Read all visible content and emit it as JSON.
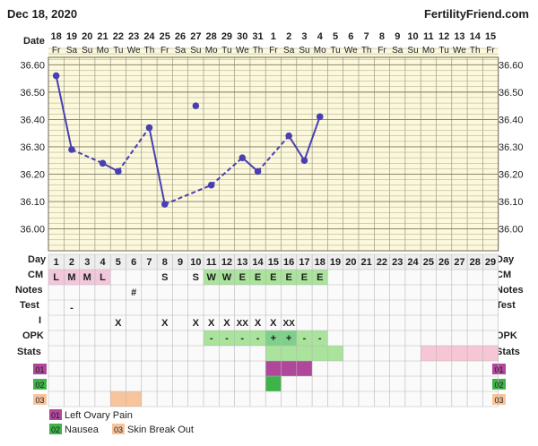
{
  "header": {
    "date": "Dec 18, 2020",
    "site": "FertilityFriend.com"
  },
  "rows": {
    "date": "Date",
    "day": "Day",
    "cm": "CM",
    "notes": "Notes",
    "test": "Test",
    "intercourse": "I",
    "opk": "OPK",
    "stats": "Stats",
    "custom1": "01",
    "custom2": "02",
    "custom3": "03"
  },
  "legend": [
    {
      "code": "01",
      "label": "Left Ovary Pain",
      "color": "#b0479a"
    },
    {
      "code": "02",
      "label": "Nausea",
      "color": "#3fb24a"
    },
    {
      "code": "03",
      "label": "Skin Break Out",
      "color": "#f7c49b"
    }
  ],
  "colors": {
    "grid_background": "#fbf8dc",
    "line": "#4a3fb0",
    "cm_pink": "#f2c7dc",
    "cm_green": "#a9e39c",
    "stats_green": "#a9e39c",
    "stats_pink": "#f6c6d4",
    "symptom_magenta": "#b0479a",
    "symptom_green": "#3fb24a",
    "symptom_peach": "#f7c49b"
  },
  "chart_data": {
    "type": "line",
    "y_ticks": [
      "36.60",
      "36.50",
      "36.40",
      "36.30",
      "36.20",
      "36.10",
      "36.00"
    ],
    "ylim": [
      35.92,
      36.66
    ],
    "dates": [
      "18",
      "19",
      "20",
      "21",
      "22",
      "23",
      "24",
      "25",
      "26",
      "27",
      "28",
      "29",
      "30",
      "31",
      "1",
      "2",
      "3",
      "4",
      "5",
      "6",
      "7",
      "8",
      "9",
      "10",
      "11",
      "12",
      "13",
      "14",
      "15"
    ],
    "weekdays": [
      "Fr",
      "Sa",
      "Su",
      "Mo",
      "Tu",
      "We",
      "Th",
      "Fr",
      "Sa",
      "Su",
      "Mo",
      "Tu",
      "We",
      "Th",
      "Fr",
      "Sa",
      "Su",
      "Mo",
      "Tu",
      "We",
      "Th",
      "Fr",
      "Sa",
      "Su",
      "Mo",
      "Tu",
      "We",
      "Th",
      "Fr"
    ],
    "cycle_days": [
      "1",
      "2",
      "3",
      "4",
      "5",
      "6",
      "7",
      "8",
      "9",
      "10",
      "11",
      "12",
      "13",
      "14",
      "15",
      "16",
      "17",
      "18",
      "19",
      "20",
      "21",
      "22",
      "23",
      "24",
      "25",
      "26",
      "27",
      "28",
      "29"
    ],
    "temperatures": [
      36.56,
      36.29,
      null,
      36.24,
      36.21,
      null,
      36.37,
      36.09,
      null,
      36.45,
      36.16,
      null,
      36.26,
      36.21,
      null,
      36.34,
      36.25,
      36.41,
      null,
      null,
      null,
      null,
      null,
      null,
      null,
      null,
      null,
      null,
      null
    ],
    "discarded": [
      9
    ],
    "cm": [
      "L",
      "M",
      "M",
      "L",
      "",
      "",
      "",
      "S",
      "",
      "S",
      "W",
      "W",
      "E",
      "E",
      "E",
      "E",
      "E",
      "E",
      "",
      "",
      "",
      "",
      "",
      "",
      "",
      "",
      "",
      "",
      ""
    ],
    "notes": [
      "",
      "",
      "",
      "",
      "",
      "#",
      "",
      "",
      "",
      "",
      "",
      "",
      "",
      "",
      "",
      "",
      "",
      "",
      "",
      "",
      "",
      "",
      "",
      "",
      "",
      "",
      "",
      "",
      ""
    ],
    "test": [
      "",
      "-",
      "",
      "",
      "",
      "",
      "",
      "",
      "",
      "",
      "",
      "",
      "",
      "",
      "",
      "",
      "",
      "",
      "",
      "",
      "",
      "",
      "",
      "",
      "",
      "",
      "",
      "",
      ""
    ],
    "intercourse": [
      "",
      "",
      "",
      "",
      "X",
      "",
      "",
      "X",
      "",
      "X",
      "X",
      "X",
      "XX",
      "X",
      "X",
      "XX",
      "",
      "",
      "",
      "",
      "",
      "",
      "",
      "",
      "",
      "",
      "",
      "",
      ""
    ],
    "opk": [
      "",
      "",
      "",
      "",
      "",
      "",
      "",
      "",
      "",
      "",
      "-",
      "-",
      "-",
      "-",
      "+",
      "+",
      "-",
      "-",
      "",
      "",
      "",
      "",
      "",
      "",
      "",
      "",
      "",
      "",
      ""
    ],
    "custom1": [
      15,
      16,
      17
    ],
    "custom2": [
      15
    ],
    "custom3": [
      5,
      6
    ]
  }
}
